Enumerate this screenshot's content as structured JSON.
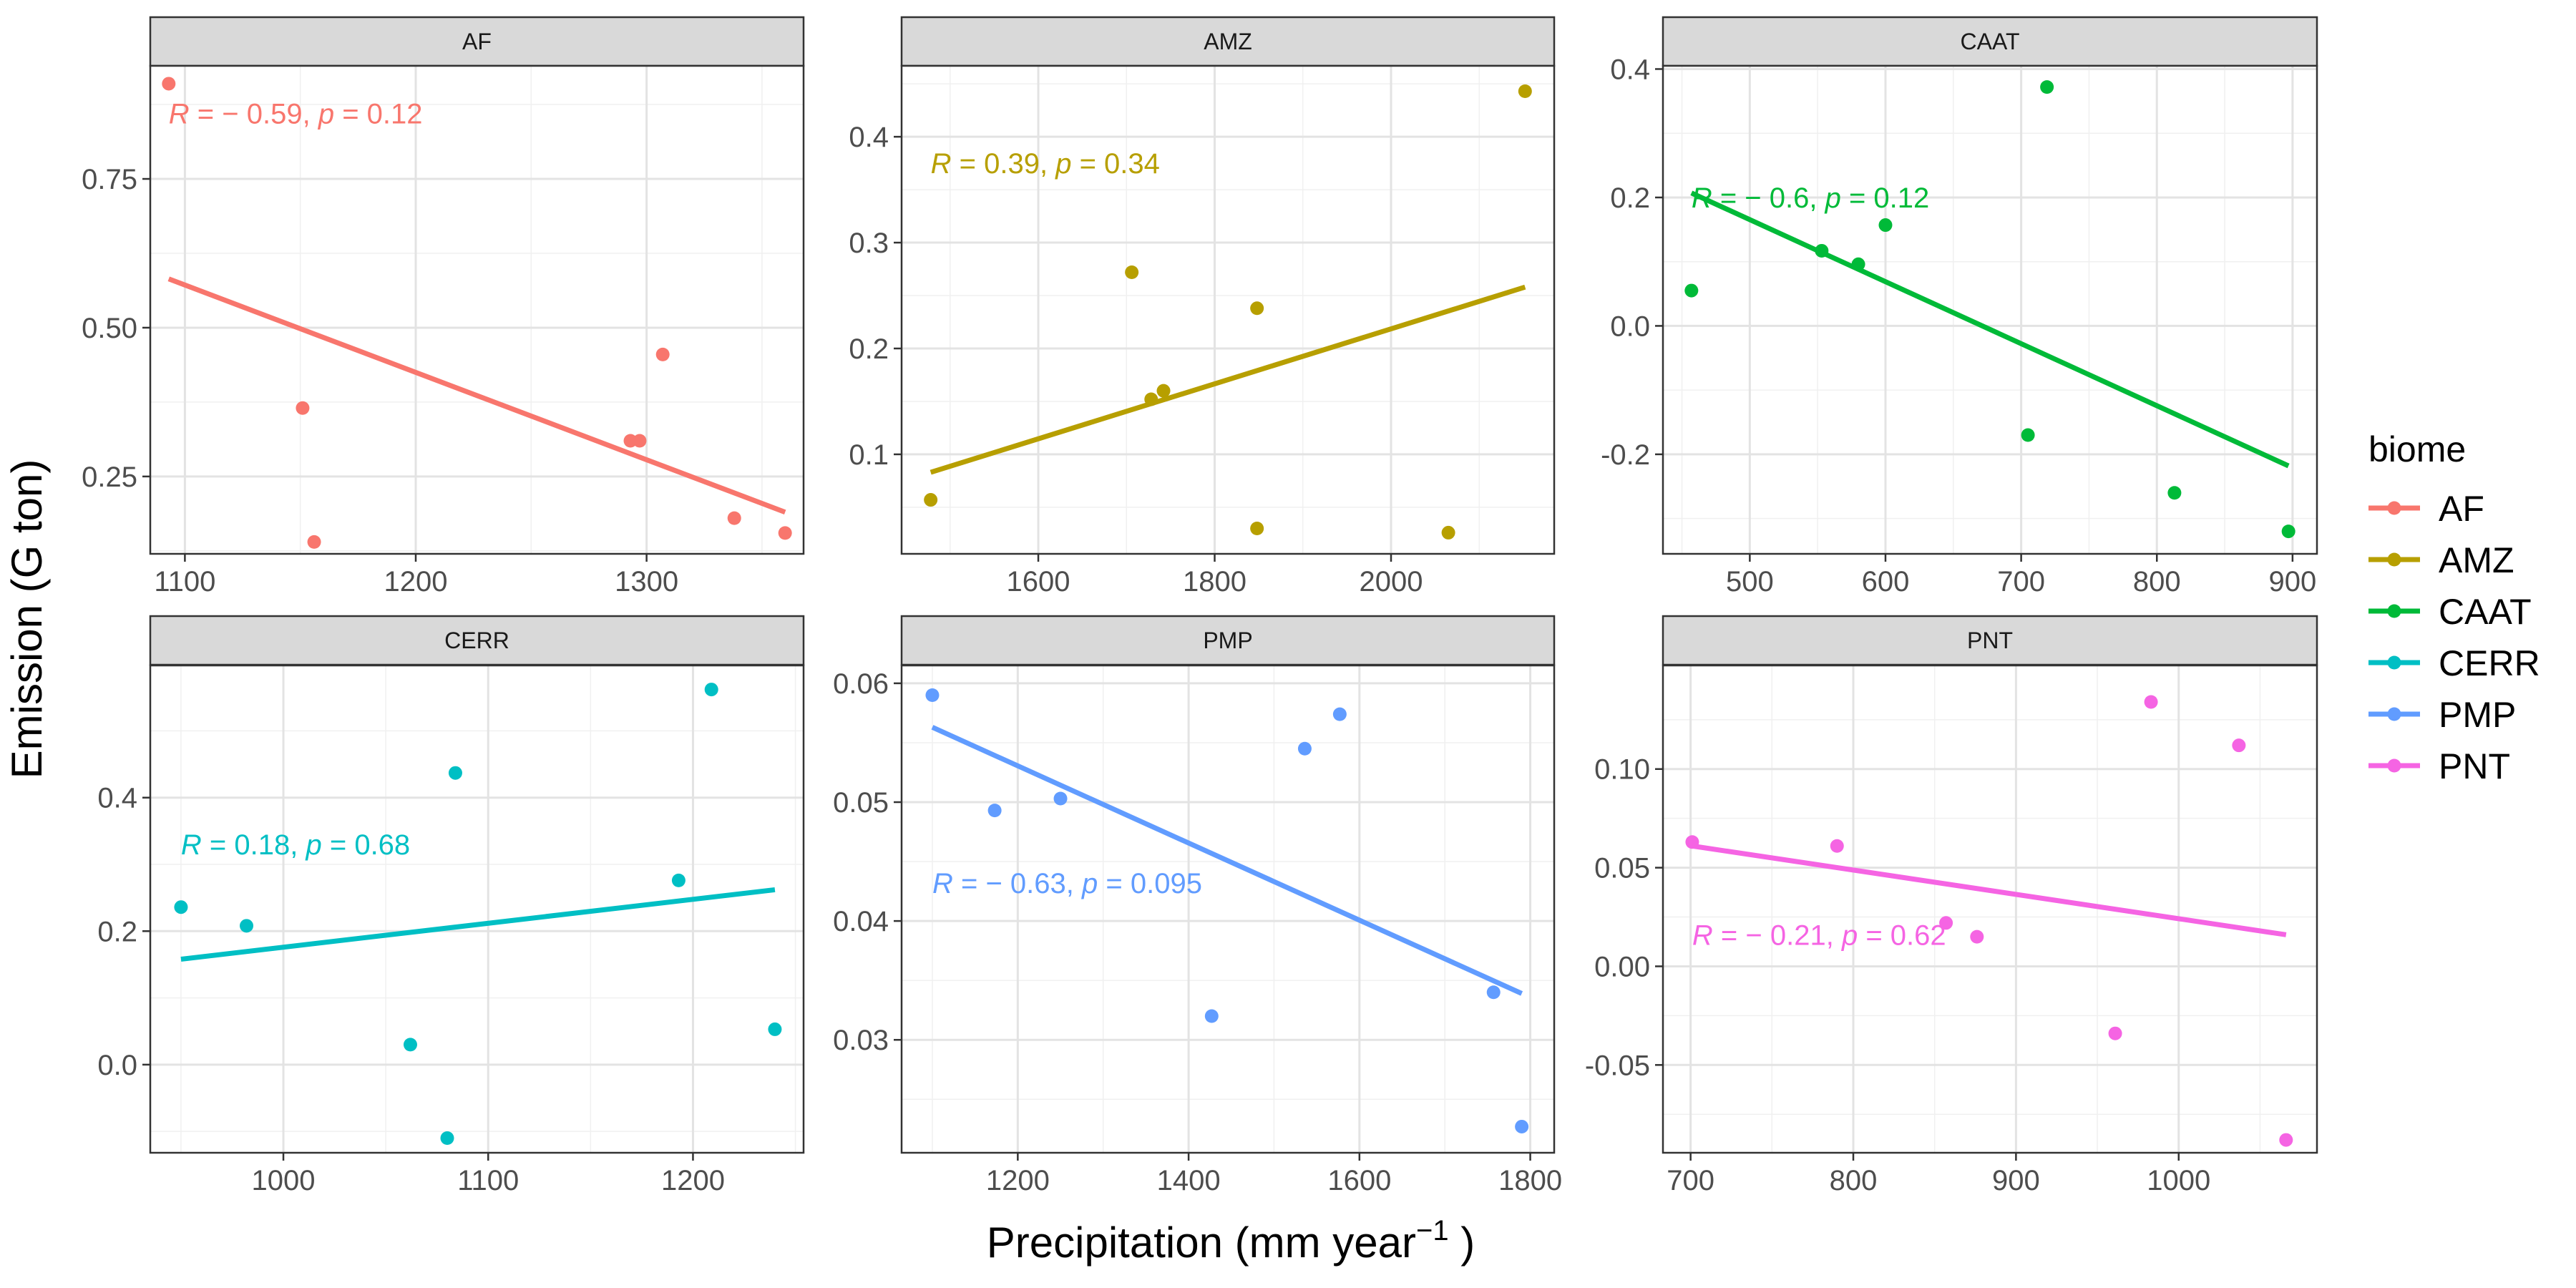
{
  "chart_data": {
    "type": "scatter",
    "xlabel": "Precipitation (mm  year",
    "xlabel_superscript": "−1",
    "xlabel_suffix": " )",
    "ylabel": "Emission (G ton)",
    "legend": {
      "title": "biome",
      "position": "right",
      "entries": [
        {
          "name": "AF",
          "color": "#F8766D"
        },
        {
          "name": "AMZ",
          "color": "#B79F00"
        },
        {
          "name": "CAAT",
          "color": "#00BA38"
        },
        {
          "name": "CERR",
          "color": "#00BFC4"
        },
        {
          "name": "PMP",
          "color": "#619CFF"
        },
        {
          "name": "PNT",
          "color": "#F564E3"
        }
      ]
    },
    "grid": true,
    "panels": [
      {
        "name": "AF",
        "color": "#F8766D",
        "xlim": [
          1085,
          1368
        ],
        "ylim": [
          0.12,
          0.94
        ],
        "xticks": [
          "1100",
          "1200",
          "1300"
        ],
        "xtick_values": [
          1100,
          1200,
          1300
        ],
        "yticks": [
          "0.25",
          "0.50",
          "0.75"
        ],
        "ytick_values": [
          0.25,
          0.5,
          0.75
        ],
        "points": [
          [
            1093,
            0.91
          ],
          [
            1151,
            0.365
          ],
          [
            1156,
            0.14
          ],
          [
            1293,
            0.31
          ],
          [
            1297,
            0.31
          ],
          [
            1307,
            0.455
          ],
          [
            1338,
            0.18
          ],
          [
            1360,
            0.155
          ]
        ],
        "fit": [
          [
            1093,
            0.582
          ],
          [
            1360,
            0.19
          ]
        ],
        "r_label": "R",
        "r_text": " = − 0.59, ",
        "p_label": "p",
        "p_text": " = 0.12",
        "annotation_at": [
          1093,
          0.86
        ]
      },
      {
        "name": "AMZ",
        "color": "#B79F00",
        "xlim": [
          1445,
          2185
        ],
        "ylim": [
          0.006,
          0.467
        ],
        "xticks": [
          "1600",
          "1800",
          "2000"
        ],
        "xtick_values": [
          1600,
          1800,
          2000
        ],
        "yticks": [
          "0.1",
          "0.2",
          "0.3",
          "0.4"
        ],
        "ytick_values": [
          0.1,
          0.2,
          0.3,
          0.4
        ],
        "points": [
          [
            1478,
            0.057
          ],
          [
            1706,
            0.272
          ],
          [
            1728,
            0.152
          ],
          [
            1742,
            0.16
          ],
          [
            1848,
            0.238
          ],
          [
            1848,
            0.03
          ],
          [
            2065,
            0.026
          ],
          [
            2152,
            0.443
          ]
        ],
        "fit": [
          [
            1478,
            0.083
          ],
          [
            2152,
            0.258
          ]
        ],
        "r_label": "R",
        "r_text": " = 0.39, ",
        "p_label": "p",
        "p_text": " = 0.34",
        "annotation_at": [
          1478,
          0.375
        ]
      },
      {
        "name": "CAAT",
        "color": "#00BA38",
        "xlim": [
          436,
          918
        ],
        "ylim": [
          -0.355,
          0.405
        ],
        "xticks": [
          "500",
          "600",
          "700",
          "800",
          "900"
        ],
        "xtick_values": [
          500,
          600,
          700,
          800,
          900
        ],
        "yticks": [
          "-0.2",
          "0.0",
          "0.2",
          "0.4"
        ],
        "ytick_values": [
          -0.2,
          0.0,
          0.2,
          0.4
        ],
        "points": [
          [
            457,
            0.055
          ],
          [
            553,
            0.117
          ],
          [
            580,
            0.096
          ],
          [
            600,
            0.157
          ],
          [
            705,
            -0.17
          ],
          [
            719,
            0.372
          ],
          [
            813,
            -0.26
          ],
          [
            897,
            -0.32
          ]
        ],
        "fit": [
          [
            457,
            0.207
          ],
          [
            897,
            -0.218
          ]
        ],
        "r_label": "R",
        "r_text": " = − 0.6, ",
        "p_label": "p",
        "p_text": " = 0.12",
        "annotation_at": [
          457,
          0.2
        ]
      },
      {
        "name": "CERR",
        "color": "#00BFC4",
        "xlim": [
          935,
          1254
        ],
        "ylim": [
          -0.132,
          0.598
        ],
        "xticks": [
          "1000",
          "1100",
          "1200"
        ],
        "xtick_values": [
          1000,
          1100,
          1200
        ],
        "yticks": [
          "0.0",
          "0.2",
          "0.4"
        ],
        "ytick_values": [
          0.0,
          0.2,
          0.4
        ],
        "points": [
          [
            950,
            0.236
          ],
          [
            982,
            0.208
          ],
          [
            1062,
            0.03
          ],
          [
            1080,
            -0.11
          ],
          [
            1084,
            0.437
          ],
          [
            1193,
            0.276
          ],
          [
            1209,
            0.562
          ],
          [
            1240,
            0.053
          ]
        ],
        "fit": [
          [
            950,
            0.158
          ],
          [
            1240,
            0.262
          ]
        ],
        "r_label": "R",
        "r_text": " = 0.18, ",
        "p_label": "p",
        "p_text": " = 0.68",
        "annotation_at": [
          950,
          0.33
        ]
      },
      {
        "name": "PMP",
        "color": "#619CFF",
        "xlim": [
          1064,
          1828
        ],
        "ylim": [
          0.0205,
          0.0615
        ],
        "xticks": [
          "1200",
          "1400",
          "1600",
          "1800"
        ],
        "xtick_values": [
          1200,
          1400,
          1600,
          1800
        ],
        "yticks": [
          "0.03",
          "0.04",
          "0.05",
          "0.06"
        ],
        "ytick_values": [
          0.03,
          0.04,
          0.05,
          0.06
        ],
        "points": [
          [
            1100,
            0.059
          ],
          [
            1173,
            0.0493
          ],
          [
            1250,
            0.0503
          ],
          [
            1427,
            0.032
          ],
          [
            1536,
            0.0545
          ],
          [
            1577,
            0.0574
          ],
          [
            1757,
            0.034
          ],
          [
            1790,
            0.0227
          ]
        ],
        "fit": [
          [
            1100,
            0.0563
          ],
          [
            1790,
            0.0339
          ]
        ],
        "r_label": "R",
        "r_text": " = − 0.63, ",
        "p_label": "p",
        "p_text": " = 0.095",
        "annotation_at": [
          1100,
          0.0432
        ]
      },
      {
        "name": "PNT",
        "color": "#F564E3",
        "xlim": [
          683,
          1085
        ],
        "ylim": [
          -0.0945,
          0.1525
        ],
        "xticks": [
          "700",
          "800",
          "900",
          "1000"
        ],
        "xtick_values": [
          700,
          800,
          900,
          1000
        ],
        "yticks": [
          "-0.05",
          "0.00",
          "0.05",
          "0.10"
        ],
        "ytick_values": [
          -0.05,
          0.0,
          0.05,
          0.1
        ],
        "points": [
          [
            701,
            0.063
          ],
          [
            790,
            0.061
          ],
          [
            857,
            0.022
          ],
          [
            876,
            0.015
          ],
          [
            961,
            -0.034
          ],
          [
            983,
            0.134
          ],
          [
            1037,
            0.112
          ],
          [
            1066,
            -0.088
          ]
        ],
        "fit": [
          [
            701,
            0.061
          ],
          [
            1066,
            0.016
          ]
        ],
        "r_label": "R",
        "r_text": " = − 0.21, ",
        "p_label": "p",
        "p_text": " = 0.62",
        "annotation_at": [
          701,
          0.016
        ]
      }
    ]
  }
}
